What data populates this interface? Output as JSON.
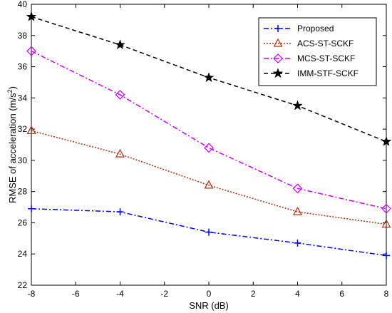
{
  "chart_data": {
    "type": "line",
    "title": "",
    "xlabel": "SNR (dB)",
    "ylabel_main": "RMSE of acceleration (m/s",
    "ylabel_sup": "2",
    "ylabel_end": ")",
    "x": [
      -8,
      -4,
      0,
      4,
      8
    ],
    "xlim": [
      -8,
      8
    ],
    "ylim": [
      22,
      40
    ],
    "xticks": [
      -8,
      -6,
      -4,
      -2,
      0,
      2,
      4,
      6,
      8
    ],
    "yticks": [
      22,
      24,
      26,
      28,
      30,
      32,
      34,
      36,
      38,
      40
    ],
    "grid": false,
    "legend_position": "top-right",
    "series": [
      {
        "name": "Proposed",
        "values": [
          26.9,
          26.7,
          25.4,
          24.7,
          23.9
        ],
        "color": "#0000ff",
        "dash": "7,3,2,3",
        "marker": "plus"
      },
      {
        "name": "ACS-ST-SCKF",
        "values": [
          31.9,
          30.4,
          28.4,
          26.7,
          25.9
        ],
        "color": "#b03010",
        "dash": "2,2",
        "marker": "triangle"
      },
      {
        "name": "MCS-ST-SCKF",
        "values": [
          37.0,
          34.2,
          30.8,
          28.2,
          26.9
        ],
        "color": "#cc00ff",
        "dash": "7,3,2,3",
        "marker": "diamond"
      },
      {
        "name": "IMM-STF-SCKF",
        "values": [
          39.2,
          37.4,
          35.3,
          33.5,
          31.2
        ],
        "color": "#000000",
        "dash": "6,4",
        "marker": "star"
      }
    ]
  }
}
